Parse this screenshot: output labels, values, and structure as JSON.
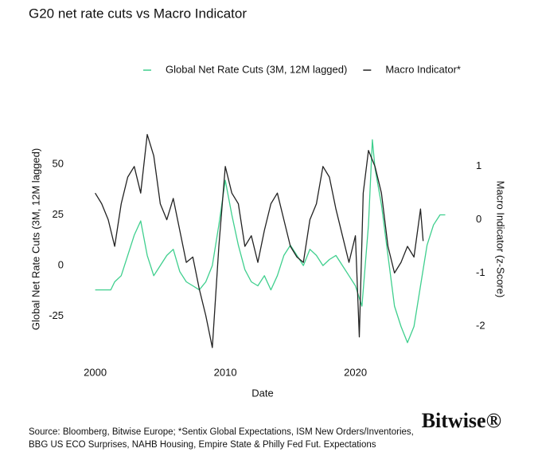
{
  "chart_data": {
    "type": "line",
    "title": "G20 net rate cuts vs Macro Indicator",
    "x_label": "Date",
    "y_label": "Global Net Rate Cuts (3M, 12M lagged)",
    "y2_label": "Macro Indicator (z-Score)",
    "xlim": [
      1998.8,
      2027.3
    ],
    "xticks": [
      2000,
      2010,
      2020
    ],
    "ylim": [
      -42,
      68
    ],
    "yticks": [
      -25,
      0,
      25,
      50
    ],
    "y2lim": [
      -2.46,
      1.73
    ],
    "y2ticks": [
      -2,
      -1,
      0,
      1
    ],
    "grid": false,
    "legend": "top",
    "series": [
      {
        "name": "Global Net Rate Cuts (3M, 12M lagged)",
        "color": "#3fcf8e",
        "x": [
          2000,
          2001.2,
          2001.5,
          2002,
          2002.5,
          2003,
          2003.5,
          2004,
          2004.5,
          2005,
          2005.5,
          2006,
          2006.5,
          2007,
          2007.5,
          2008,
          2008.5,
          2009,
          2009.5,
          2010,
          2010.5,
          2011,
          2011.5,
          2012,
          2012.5,
          2013,
          2013.5,
          2014,
          2014.5,
          2015,
          2015.5,
          2016,
          2016.5,
          2017,
          2017.5,
          2018,
          2018.5,
          2019,
          2019.5,
          2020,
          2020.5,
          2021,
          2021.3,
          2021.5,
          2022,
          2022.5,
          2023,
          2023.5,
          2024,
          2024.5,
          2025,
          2025.5,
          2026,
          2026.5,
          2026.9
        ],
        "values": [
          -12,
          -12,
          -8,
          -5,
          5,
          15,
          22,
          5,
          -5,
          0,
          5,
          8,
          -3,
          -8,
          -10,
          -12,
          -8,
          0,
          20,
          42,
          25,
          10,
          -2,
          -8,
          -10,
          -5,
          -12,
          -5,
          5,
          10,
          5,
          0,
          8,
          5,
          0,
          3,
          5,
          0,
          -5,
          -10,
          -20,
          20,
          62,
          48,
          30,
          5,
          -20,
          -30,
          -38,
          -30,
          -10,
          10,
          20,
          25,
          25
        ]
      },
      {
        "name": "Macro Indicator*",
        "color": "#222222",
        "axis": "y2",
        "x": [
          2000,
          2000.5,
          2001,
          2001.5,
          2002,
          2002.5,
          2003,
          2003.5,
          2004,
          2004.5,
          2005,
          2005.5,
          2006,
          2006.5,
          2007,
          2007.5,
          2008,
          2008.5,
          2009,
          2009.5,
          2010,
          2010.5,
          2011,
          2011.5,
          2012,
          2012.5,
          2013,
          2013.5,
          2014,
          2014.5,
          2015,
          2015.5,
          2016,
          2016.5,
          2017,
          2017.5,
          2018,
          2018.5,
          2019,
          2019.5,
          2020,
          2020.3,
          2020.6,
          2021,
          2021.5,
          2022,
          2022.5,
          2023,
          2023.5,
          2024,
          2024.5,
          2025,
          2025.2
        ],
        "values": [
          0.5,
          0.3,
          0,
          -0.5,
          0.3,
          0.8,
          1.0,
          0.5,
          1.6,
          1.2,
          0.3,
          0,
          0.4,
          -0.2,
          -0.8,
          -0.7,
          -1.3,
          -1.8,
          -2.4,
          -0.5,
          1.0,
          0.5,
          0.3,
          -0.5,
          -0.3,
          -0.8,
          -0.2,
          0.3,
          0.5,
          0,
          -0.5,
          -0.7,
          -0.8,
          0,
          0.3,
          1.0,
          0.8,
          0.2,
          -0.3,
          -0.8,
          -0.3,
          -2.2,
          0.5,
          1.3,
          1.0,
          0.5,
          -0.5,
          -1.0,
          -0.8,
          -0.5,
          -0.7,
          0.2,
          -0.4
        ]
      }
    ],
    "source": [
      "Source: Bloomberg, Bitwise Europe; *Sentix Global Expectations, ISM New Orders/Inventories,",
      "BBG US ECO Surprises, NAHB Housing, Empire State & Philly Fed Fut. Expectations"
    ],
    "brand": "Bitwise®"
  }
}
